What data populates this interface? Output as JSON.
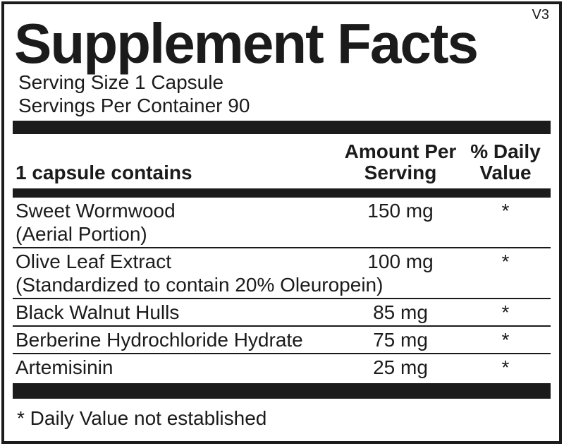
{
  "label": {
    "version": "V3",
    "title": "Supplement Facts",
    "serving_size": "Serving Size 1 Capsule",
    "servings_per_container": "Servings Per Container 90",
    "columns": {
      "ingredient": "1 capsule contains",
      "amount_line1": "Amount Per",
      "amount_line2": "Serving",
      "daily_value_line1": "% Daily",
      "daily_value_line2": "Value"
    },
    "rows": [
      {
        "name": "Sweet Wormwood",
        "detail": "(Aerial Portion)",
        "amount": "150 mg",
        "daily_value": "*"
      },
      {
        "name": "Olive Leaf Extract",
        "detail": "(Standardized to contain 20% Oleuropein)",
        "amount": "100 mg",
        "daily_value": "*"
      },
      {
        "name": "Black Walnut Hulls",
        "amount": "85 mg",
        "daily_value": "*"
      },
      {
        "name": "Berberine Hydrochloride Hydrate",
        "amount": "75 mg",
        "daily_value": "*"
      },
      {
        "name": "Artemisinin",
        "amount": "25 mg",
        "daily_value": "*"
      }
    ],
    "footnote": "* Daily Value not established",
    "colors": {
      "ink": "#1b1b1b",
      "background": "#ffffff"
    }
  }
}
